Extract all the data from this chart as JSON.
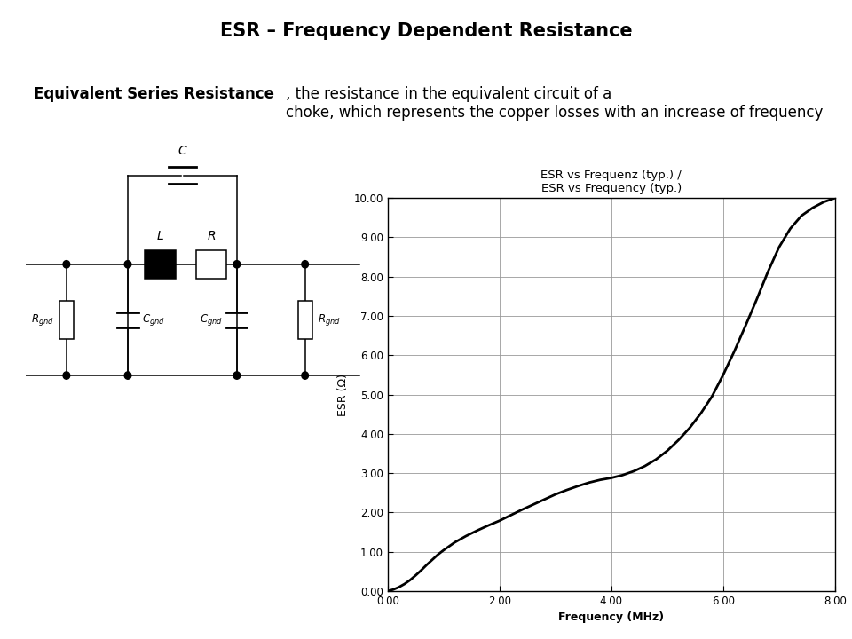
{
  "title": "ESR – Frequency Dependent Resistance",
  "title_fontsize": 15,
  "body_bold": "Equivalent Series Resistance",
  "body_normal": ", the resistance in the equivalent circuit of a\nchoke, which represents the copper losses with an increase of frequency",
  "body_fontsize": 12,
  "graph_title": "ESR vs Frequenz (typ.) /\nESR vs Frequency (typ.)",
  "graph_title_fontsize": 9.5,
  "xlabel": "Frequency (MHz)",
  "ylabel": "ESR (Ω)",
  "xlabel_fontsize": 9,
  "ylabel_fontsize": 9,
  "xlim": [
    0,
    8.0
  ],
  "ylim": [
    0,
    10.0
  ],
  "xticks": [
    0.0,
    2.0,
    4.0,
    6.0,
    8.0
  ],
  "yticks": [
    0.0,
    1.0,
    2.0,
    3.0,
    4.0,
    5.0,
    6.0,
    7.0,
    8.0,
    9.0,
    10.0
  ],
  "xtick_labels": [
    "0.00",
    "2.00",
    "4.00",
    "6.00",
    "8.00"
  ],
  "ytick_labels": [
    "0.00",
    "1.00",
    "2.00",
    "3.00",
    "4.00",
    "5.00",
    "6.00",
    "7.00",
    "8.00",
    "9.00",
    "10.00"
  ],
  "tick_fontsize": 8.5,
  "curve_color": "#000000",
  "curve_linewidth": 2.0,
  "background_color": "#ffffff",
  "freq_data": [
    0.0,
    0.1,
    0.2,
    0.3,
    0.4,
    0.5,
    0.6,
    0.7,
    0.8,
    0.9,
    1.0,
    1.2,
    1.4,
    1.6,
    1.8,
    2.0,
    2.2,
    2.4,
    2.6,
    2.8,
    3.0,
    3.2,
    3.4,
    3.6,
    3.8,
    4.0,
    4.2,
    4.4,
    4.6,
    4.8,
    5.0,
    5.2,
    5.4,
    5.6,
    5.8,
    6.0,
    6.2,
    6.4,
    6.6,
    6.8,
    7.0,
    7.2,
    7.4,
    7.6,
    7.8,
    8.0
  ],
  "esr_data": [
    0.0,
    0.04,
    0.1,
    0.18,
    0.28,
    0.4,
    0.53,
    0.67,
    0.8,
    0.93,
    1.04,
    1.24,
    1.4,
    1.54,
    1.67,
    1.79,
    1.93,
    2.07,
    2.2,
    2.33,
    2.46,
    2.57,
    2.67,
    2.76,
    2.83,
    2.88,
    2.95,
    3.05,
    3.18,
    3.35,
    3.57,
    3.84,
    4.15,
    4.52,
    4.95,
    5.5,
    6.1,
    6.75,
    7.42,
    8.12,
    8.75,
    9.22,
    9.55,
    9.75,
    9.9,
    10.0
  ],
  "grid_color": "#999999",
  "grid_linewidth": 0.6
}
